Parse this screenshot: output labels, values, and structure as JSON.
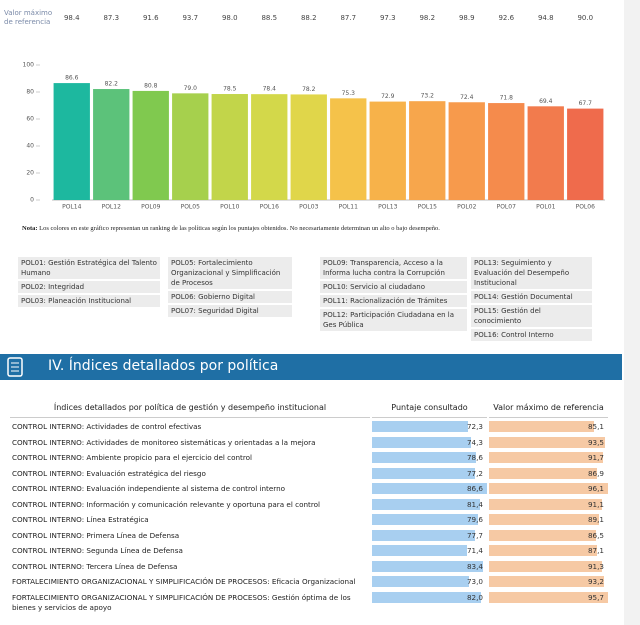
{
  "reference_row": {
    "label": "Valor máximo de referencia",
    "values": [
      "98.4",
      "87.3",
      "91.6",
      "93.7",
      "98.0",
      "88.5",
      "88.2",
      "87.7",
      "97.3",
      "98.2",
      "98.9",
      "92.6",
      "94.8",
      "90.0"
    ]
  },
  "chart_data": {
    "type": "bar",
    "categories": [
      "POL14",
      "POL12",
      "POL09",
      "POL05",
      "POL10",
      "POL16",
      "POL03",
      "POL11",
      "POL13",
      "POL15",
      "POL02",
      "POL07",
      "POL01",
      "POL06"
    ],
    "values": [
      86.6,
      82.2,
      80.8,
      79.0,
      78.5,
      78.4,
      78.2,
      75.3,
      72.9,
      73.2,
      72.4,
      71.8,
      69.4,
      67.7
    ],
    "value_labels": [
      "86.6",
      "82.2",
      "80.8",
      "79.0",
      "78.5",
      "78.4",
      "78.2",
      "75.3",
      "72.9",
      "73.2",
      "72.4",
      "71.8",
      "69.4",
      "67.7"
    ],
    "colors": [
      "#1db89f",
      "#5cc27a",
      "#80c94f",
      "#a6d04d",
      "#c2d54a",
      "#d3d84a",
      "#e0d64a",
      "#f5c24a",
      "#f7b24a",
      "#f7a64c",
      "#f79a4c",
      "#f58b4c",
      "#f27b4d",
      "#ef6b4c"
    ],
    "ylim": [
      0,
      100
    ],
    "yticks": [
      0,
      20,
      40,
      60,
      80,
      100
    ],
    "grid": false
  },
  "note": {
    "label": "Nota:",
    "text": "Los colores en este gráfico representan un ranking de las políticas según los puntajes obtenidos. No necesariamente determinan un alto o bajo desempeño."
  },
  "legend": {
    "columns": [
      [
        "POL01: Gestión Estratégica del Talento Humano",
        "POL02: Integridad",
        "POL03: Planeación Institucional"
      ],
      [
        "POL05: Fortalecimiento Organizacional y Simplificación de Procesos",
        "POL06: Gobierno Digital",
        "POL07: Seguridad Digital"
      ],
      [
        "POL09: Transparencia, Acceso a la Informa lucha contra la Corrupción",
        "POL10: Servicio al ciudadano",
        "POL11: Racionalización de Trámites",
        "POL12: Participación Ciudadana en la Ges Pública"
      ],
      [
        "POL13: Seguimiento y Evaluación del Desempeño Institucional",
        "POL14: Gestión Documental",
        "POL15: Gestión del conocimiento",
        "POL16: Control Interno"
      ]
    ]
  },
  "section": {
    "title": "IV. Índices detallados por política"
  },
  "table": {
    "headers": [
      "Índices detallados por política de gestión y desempeño institucional",
      "Puntaje consultado",
      "Valor máximo de referencia"
    ],
    "rows": [
      {
        "name": "CONTROL INTERNO: Actividades de control efectivas",
        "score": 72.3,
        "score_label": "72,3",
        "max": 85.1,
        "max_label": "85,1"
      },
      {
        "name": "CONTROL INTERNO: Actividades de monitoreo sistemáticas y orientadas a la mejora",
        "score": 74.3,
        "score_label": "74,3",
        "max": 93.5,
        "max_label": "93,5"
      },
      {
        "name": "CONTROL INTERNO: Ambiente propicio para el ejercicio del control",
        "score": 78.6,
        "score_label": "78,6",
        "max": 91.7,
        "max_label": "91,7"
      },
      {
        "name": "CONTROL INTERNO: Evaluación estratégica del riesgo",
        "score": 77.2,
        "score_label": "77,2",
        "max": 86.9,
        "max_label": "86,9"
      },
      {
        "name": "CONTROL INTERNO: Evaluación independiente al sistema de control interno",
        "score": 86.6,
        "score_label": "86,6",
        "max": 96.1,
        "max_label": "96,1"
      },
      {
        "name": "CONTROL INTERNO: Información y comunicación relevante y oportuna para el control",
        "score": 81.4,
        "score_label": "81,4",
        "max": 91.1,
        "max_label": "91,1"
      },
      {
        "name": "CONTROL INTERNO: Línea Estratégica",
        "score": 79.6,
        "score_label": "79,6",
        "max": 89.1,
        "max_label": "89,1"
      },
      {
        "name": "CONTROL INTERNO: Primera Línea de Defensa",
        "score": 77.7,
        "score_label": "77,7",
        "max": 86.5,
        "max_label": "86,5"
      },
      {
        "name": "CONTROL INTERNO: Segunda Línea de Defensa",
        "score": 71.4,
        "score_label": "71,4",
        "max": 87.1,
        "max_label": "87,1"
      },
      {
        "name": "CONTROL INTERNO: Tercera Línea de Defensa",
        "score": 83.4,
        "score_label": "83,4",
        "max": 91.3,
        "max_label": "91,3"
      },
      {
        "name": "FORTALECIMIENTO ORGANIZACIONAL Y SIMPLIFICACIÓN DE PROCESOS: Eficacia Organizacional",
        "score": 73.0,
        "score_label": "73,0",
        "max": 93.2,
        "max_label": "93,2"
      },
      {
        "name": "FORTALECIMIENTO ORGANIZACIONAL Y SIMPLIFICACIÓN DE PROCESOS: Gestión óptima de los bienes y servicios de apoyo",
        "score": 82.0,
        "score_label": "82,0",
        "max": 95.7,
        "max_label": "95,7"
      }
    ]
  }
}
